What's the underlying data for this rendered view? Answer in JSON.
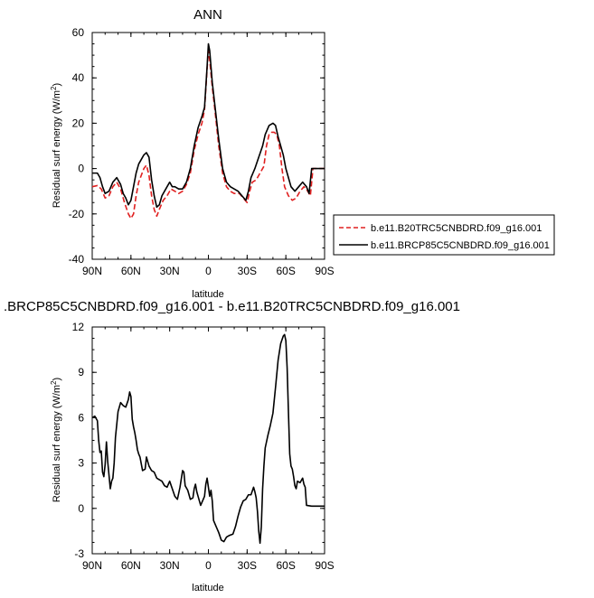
{
  "chart_data": [
    {
      "type": "line",
      "title": "ANN",
      "xlabel": "latitude",
      "ylabel": "Residual surf energy (W/m²)",
      "ylabel_main": "Residual surf energy (W/m",
      "ylabel_sup": "2",
      "ylabel_end": ")",
      "xlim": [
        -90,
        90
      ],
      "ylim": [
        -40,
        60
      ],
      "xticks": [
        -90,
        -60,
        -30,
        0,
        30,
        60,
        90
      ],
      "xtick_labels": [
        "90N",
        "60N",
        "30N",
        "0",
        "30S",
        "60S",
        "90S"
      ],
      "yticks": [
        -40,
        -20,
        0,
        20,
        40,
        60
      ],
      "ytick_labels": [
        "-40",
        "-20",
        "0",
        "20",
        "40",
        "60"
      ],
      "legend_position": "right",
      "series": [
        {
          "name": "b.e11.B20TRC5CNBDRD.f09_g16.001",
          "color": "#e02020",
          "dash": "dashed",
          "points": [
            [
              -90,
              -8
            ],
            [
              -86,
              -7.5
            ],
            [
              -83,
              -9
            ],
            [
              -80,
              -13
            ],
            [
              -77,
              -12
            ],
            [
              -74,
              -8
            ],
            [
              -71,
              -6
            ],
            [
              -68,
              -9
            ],
            [
              -65,
              -15
            ],
            [
              -62,
              -20
            ],
            [
              -60,
              -22
            ],
            [
              -58,
              -20
            ],
            [
              -56,
              -12
            ],
            [
              -54,
              -6
            ],
            [
              -52,
              -3
            ],
            [
              -50,
              0
            ],
            [
              -48,
              1.5
            ],
            [
              -46,
              -3
            ],
            [
              -44,
              -12
            ],
            [
              -42,
              -18
            ],
            [
              -40,
              -21
            ],
            [
              -38,
              -18
            ],
            [
              -35,
              -14
            ],
            [
              -32,
              -12
            ],
            [
              -29,
              -9
            ],
            [
              -26,
              -10
            ],
            [
              -23,
              -11
            ],
            [
              -20,
              -10
            ],
            [
              -17,
              -7
            ],
            [
              -14,
              -2
            ],
            [
              -11,
              8
            ],
            [
              -8,
              15
            ],
            [
              -5,
              20
            ],
            [
              -3,
              26
            ],
            [
              -1,
              44
            ],
            [
              0,
              52
            ],
            [
              1,
              48
            ],
            [
              3,
              36
            ],
            [
              5,
              26
            ],
            [
              8,
              10
            ],
            [
              11,
              -2
            ],
            [
              14,
              -8
            ],
            [
              17,
              -10
            ],
            [
              20,
              -11
            ],
            [
              24,
              -11
            ],
            [
              27,
              -13
            ],
            [
              30,
              -15
            ],
            [
              32,
              -10
            ],
            [
              34,
              -6
            ],
            [
              37,
              -5
            ],
            [
              40,
              -2
            ],
            [
              43,
              1
            ],
            [
              45,
              10
            ],
            [
              47,
              15
            ],
            [
              49,
              16
            ],
            [
              51,
              16
            ],
            [
              53,
              15
            ],
            [
              55,
              10
            ],
            [
              57,
              0
            ],
            [
              59,
              -8
            ],
            [
              62,
              -12
            ],
            [
              65,
              -14
            ],
            [
              68,
              -13
            ],
            [
              71,
              -10
            ],
            [
              74,
              -8
            ],
            [
              77,
              -10
            ],
            [
              79,
              -12
            ],
            [
              81,
              0
            ],
            [
              85,
              0
            ],
            [
              90,
              0
            ]
          ]
        },
        {
          "name": "b.e11.BRCP85C5CNBDRD.f09_g16.001",
          "color": "#000000",
          "dash": "solid",
          "points": [
            [
              -90,
              -2
            ],
            [
              -86,
              -2
            ],
            [
              -84,
              -4
            ],
            [
              -82,
              -8
            ],
            [
              -80,
              -11
            ],
            [
              -77,
              -10
            ],
            [
              -74,
              -6
            ],
            [
              -71,
              -4
            ],
            [
              -68,
              -7
            ],
            [
              -66,
              -11
            ],
            [
              -64,
              -13
            ],
            [
              -62,
              -16
            ],
            [
              -60,
              -14
            ],
            [
              -58,
              -8
            ],
            [
              -56,
              -2
            ],
            [
              -54,
              2
            ],
            [
              -52,
              4
            ],
            [
              -50,
              6
            ],
            [
              -48,
              7
            ],
            [
              -46,
              5
            ],
            [
              -44,
              -5
            ],
            [
              -42,
              -12
            ],
            [
              -40,
              -17
            ],
            [
              -38,
              -16
            ],
            [
              -36,
              -12
            ],
            [
              -33,
              -9
            ],
            [
              -30,
              -6
            ],
            [
              -28,
              -8
            ],
            [
              -26,
              -8
            ],
            [
              -23,
              -9
            ],
            [
              -20,
              -9
            ],
            [
              -17,
              -6
            ],
            [
              -14,
              0
            ],
            [
              -11,
              10
            ],
            [
              -8,
              18
            ],
            [
              -5,
              23
            ],
            [
              -3,
              27
            ],
            [
              -1,
              45
            ],
            [
              0,
              55
            ],
            [
              1,
              52
            ],
            [
              3,
              38
            ],
            [
              5,
              28
            ],
            [
              8,
              13
            ],
            [
              11,
              0
            ],
            [
              14,
              -6
            ],
            [
              17,
              -8
            ],
            [
              20,
              -9
            ],
            [
              23,
              -10
            ],
            [
              26,
              -12
            ],
            [
              29,
              -14
            ],
            [
              31,
              -10
            ],
            [
              33,
              -4
            ],
            [
              36,
              0
            ],
            [
              39,
              5
            ],
            [
              42,
              10
            ],
            [
              44,
              15
            ],
            [
              47,
              19
            ],
            [
              50,
              20
            ],
            [
              52,
              19
            ],
            [
              54,
              14
            ],
            [
              56,
              10
            ],
            [
              58,
              6
            ],
            [
              60,
              0
            ],
            [
              62,
              -4
            ],
            [
              64,
              -8
            ],
            [
              67,
              -10
            ],
            [
              70,
              -8
            ],
            [
              73,
              -6
            ],
            [
              76,
              -8
            ],
            [
              78,
              -11
            ],
            [
              80,
              0
            ],
            [
              85,
              0
            ],
            [
              90,
              0
            ]
          ]
        }
      ]
    },
    {
      "type": "line",
      "title": ".BRCP85C5CNBDRD.f09_g16.001 - b.e11.B20TRC5CNBDRD.f09_g16.001",
      "xlabel": "latitude",
      "ylabel": "Residual surf energy (W/m²)",
      "ylabel_main": "Residual surf energy (W/m",
      "ylabel_sup": "2",
      "ylabel_end": ")",
      "xlim": [
        -90,
        90
      ],
      "ylim": [
        -3,
        12
      ],
      "xticks": [
        -90,
        -60,
        -30,
        0,
        30,
        60,
        90
      ],
      "xtick_labels": [
        "90N",
        "60N",
        "30N",
        "0",
        "30S",
        "60S",
        "90S"
      ],
      "yticks": [
        -3,
        0,
        3,
        6,
        9,
        12
      ],
      "ytick_labels": [
        "-3",
        "0",
        "3",
        "6",
        "9",
        "12"
      ],
      "series": [
        {
          "color": "#000000",
          "dash": "solid",
          "points": [
            [
              -90,
              6
            ],
            [
              -88,
              6.1
            ],
            [
              -86,
              5.8
            ],
            [
              -85,
              4.5
            ],
            [
              -84,
              3.7
            ],
            [
              -83,
              3.8
            ],
            [
              -82,
              2.4
            ],
            [
              -81,
              2.1
            ],
            [
              -80,
              2.9
            ],
            [
              -79,
              4.4
            ],
            [
              -78,
              3.1
            ],
            [
              -77,
              2.2
            ],
            [
              -76,
              1.3
            ],
            [
              -75,
              1.8
            ],
            [
              -74,
              2.0
            ],
            [
              -73,
              3.0
            ],
            [
              -72,
              4.7
            ],
            [
              -70,
              6.4
            ],
            [
              -68,
              7.0
            ],
            [
              -66,
              6.8
            ],
            [
              -64,
              6.7
            ],
            [
              -62,
              7.2
            ],
            [
              -61,
              7.7
            ],
            [
              -60,
              7.4
            ],
            [
              -59,
              5.9
            ],
            [
              -58,
              5.4
            ],
            [
              -57,
              5.0
            ],
            [
              -56,
              4.5
            ],
            [
              -55,
              3.9
            ],
            [
              -54,
              3.6
            ],
            [
              -53,
              3.4
            ],
            [
              -51,
              2.5
            ],
            [
              -49,
              2.6
            ],
            [
              -48,
              3.4
            ],
            [
              -46,
              2.8
            ],
            [
              -44,
              2.5
            ],
            [
              -42,
              2.4
            ],
            [
              -40,
              2.0
            ],
            [
              -38,
              1.9
            ],
            [
              -36,
              1.8
            ],
            [
              -34,
              1.5
            ],
            [
              -32,
              1.4
            ],
            [
              -30,
              1.8
            ],
            [
              -28,
              1.3
            ],
            [
              -26,
              0.8
            ],
            [
              -24,
              0.6
            ],
            [
              -22,
              1.4
            ],
            [
              -20,
              2.5
            ],
            [
              -19,
              2.4
            ],
            [
              -18,
              1.5
            ],
            [
              -16,
              1.2
            ],
            [
              -14,
              0.6
            ],
            [
              -12,
              0.7
            ],
            [
              -11,
              1.3
            ],
            [
              -10,
              1.6
            ],
            [
              -9,
              1.1
            ],
            [
              -8,
              0.8
            ],
            [
              -6,
              0.2
            ],
            [
              -4,
              0.6
            ],
            [
              -3,
              0.8
            ],
            [
              -2,
              1.6
            ],
            [
              -1,
              2.0
            ],
            [
              0,
              1.4
            ],
            [
              1,
              0.8
            ],
            [
              2,
              1.2
            ],
            [
              3,
              0.5
            ],
            [
              4,
              -0.8
            ],
            [
              6,
              -1.2
            ],
            [
              8,
              -1.6
            ],
            [
              10,
              -2.1
            ],
            [
              12,
              -2.2
            ],
            [
              14,
              -1.9
            ],
            [
              16,
              -1.8
            ],
            [
              19,
              -1.7
            ],
            [
              21,
              -1.2
            ],
            [
              23,
              -0.5
            ],
            [
              25,
              0.1
            ],
            [
              27,
              0.5
            ],
            [
              29,
              0.6
            ],
            [
              31,
              0.9
            ],
            [
              33,
              0.9
            ],
            [
              35,
              1.4
            ],
            [
              36,
              1.1
            ],
            [
              37,
              0.7
            ],
            [
              38,
              -0.2
            ],
            [
              39,
              -1.5
            ],
            [
              40,
              -2.3
            ],
            [
              41,
              -1.2
            ],
            [
              42,
              1.3
            ],
            [
              43,
              2.8
            ],
            [
              44,
              4.0
            ],
            [
              46,
              4.8
            ],
            [
              48,
              5.5
            ],
            [
              50,
              6.3
            ],
            [
              52,
              8.0
            ],
            [
              54,
              9.8
            ],
            [
              56,
              10.9
            ],
            [
              58,
              11.4
            ],
            [
              59,
              11.5
            ],
            [
              60,
              11.1
            ],
            [
              61,
              9.3
            ],
            [
              62,
              6.4
            ],
            [
              63,
              3.6
            ],
            [
              64,
              2.8
            ],
            [
              65,
              2.6
            ],
            [
              66,
              2.1
            ],
            [
              67,
              1.5
            ],
            [
              68,
              1.3
            ],
            [
              69,
              1.8
            ],
            [
              71,
              1.7
            ],
            [
              73,
              2.0
            ],
            [
              74,
              1.6
            ],
            [
              75,
              1.4
            ],
            [
              76,
              0.2
            ],
            [
              80,
              0.15
            ],
            [
              85,
              0.15
            ],
            [
              90,
              0.15
            ]
          ]
        }
      ]
    }
  ]
}
